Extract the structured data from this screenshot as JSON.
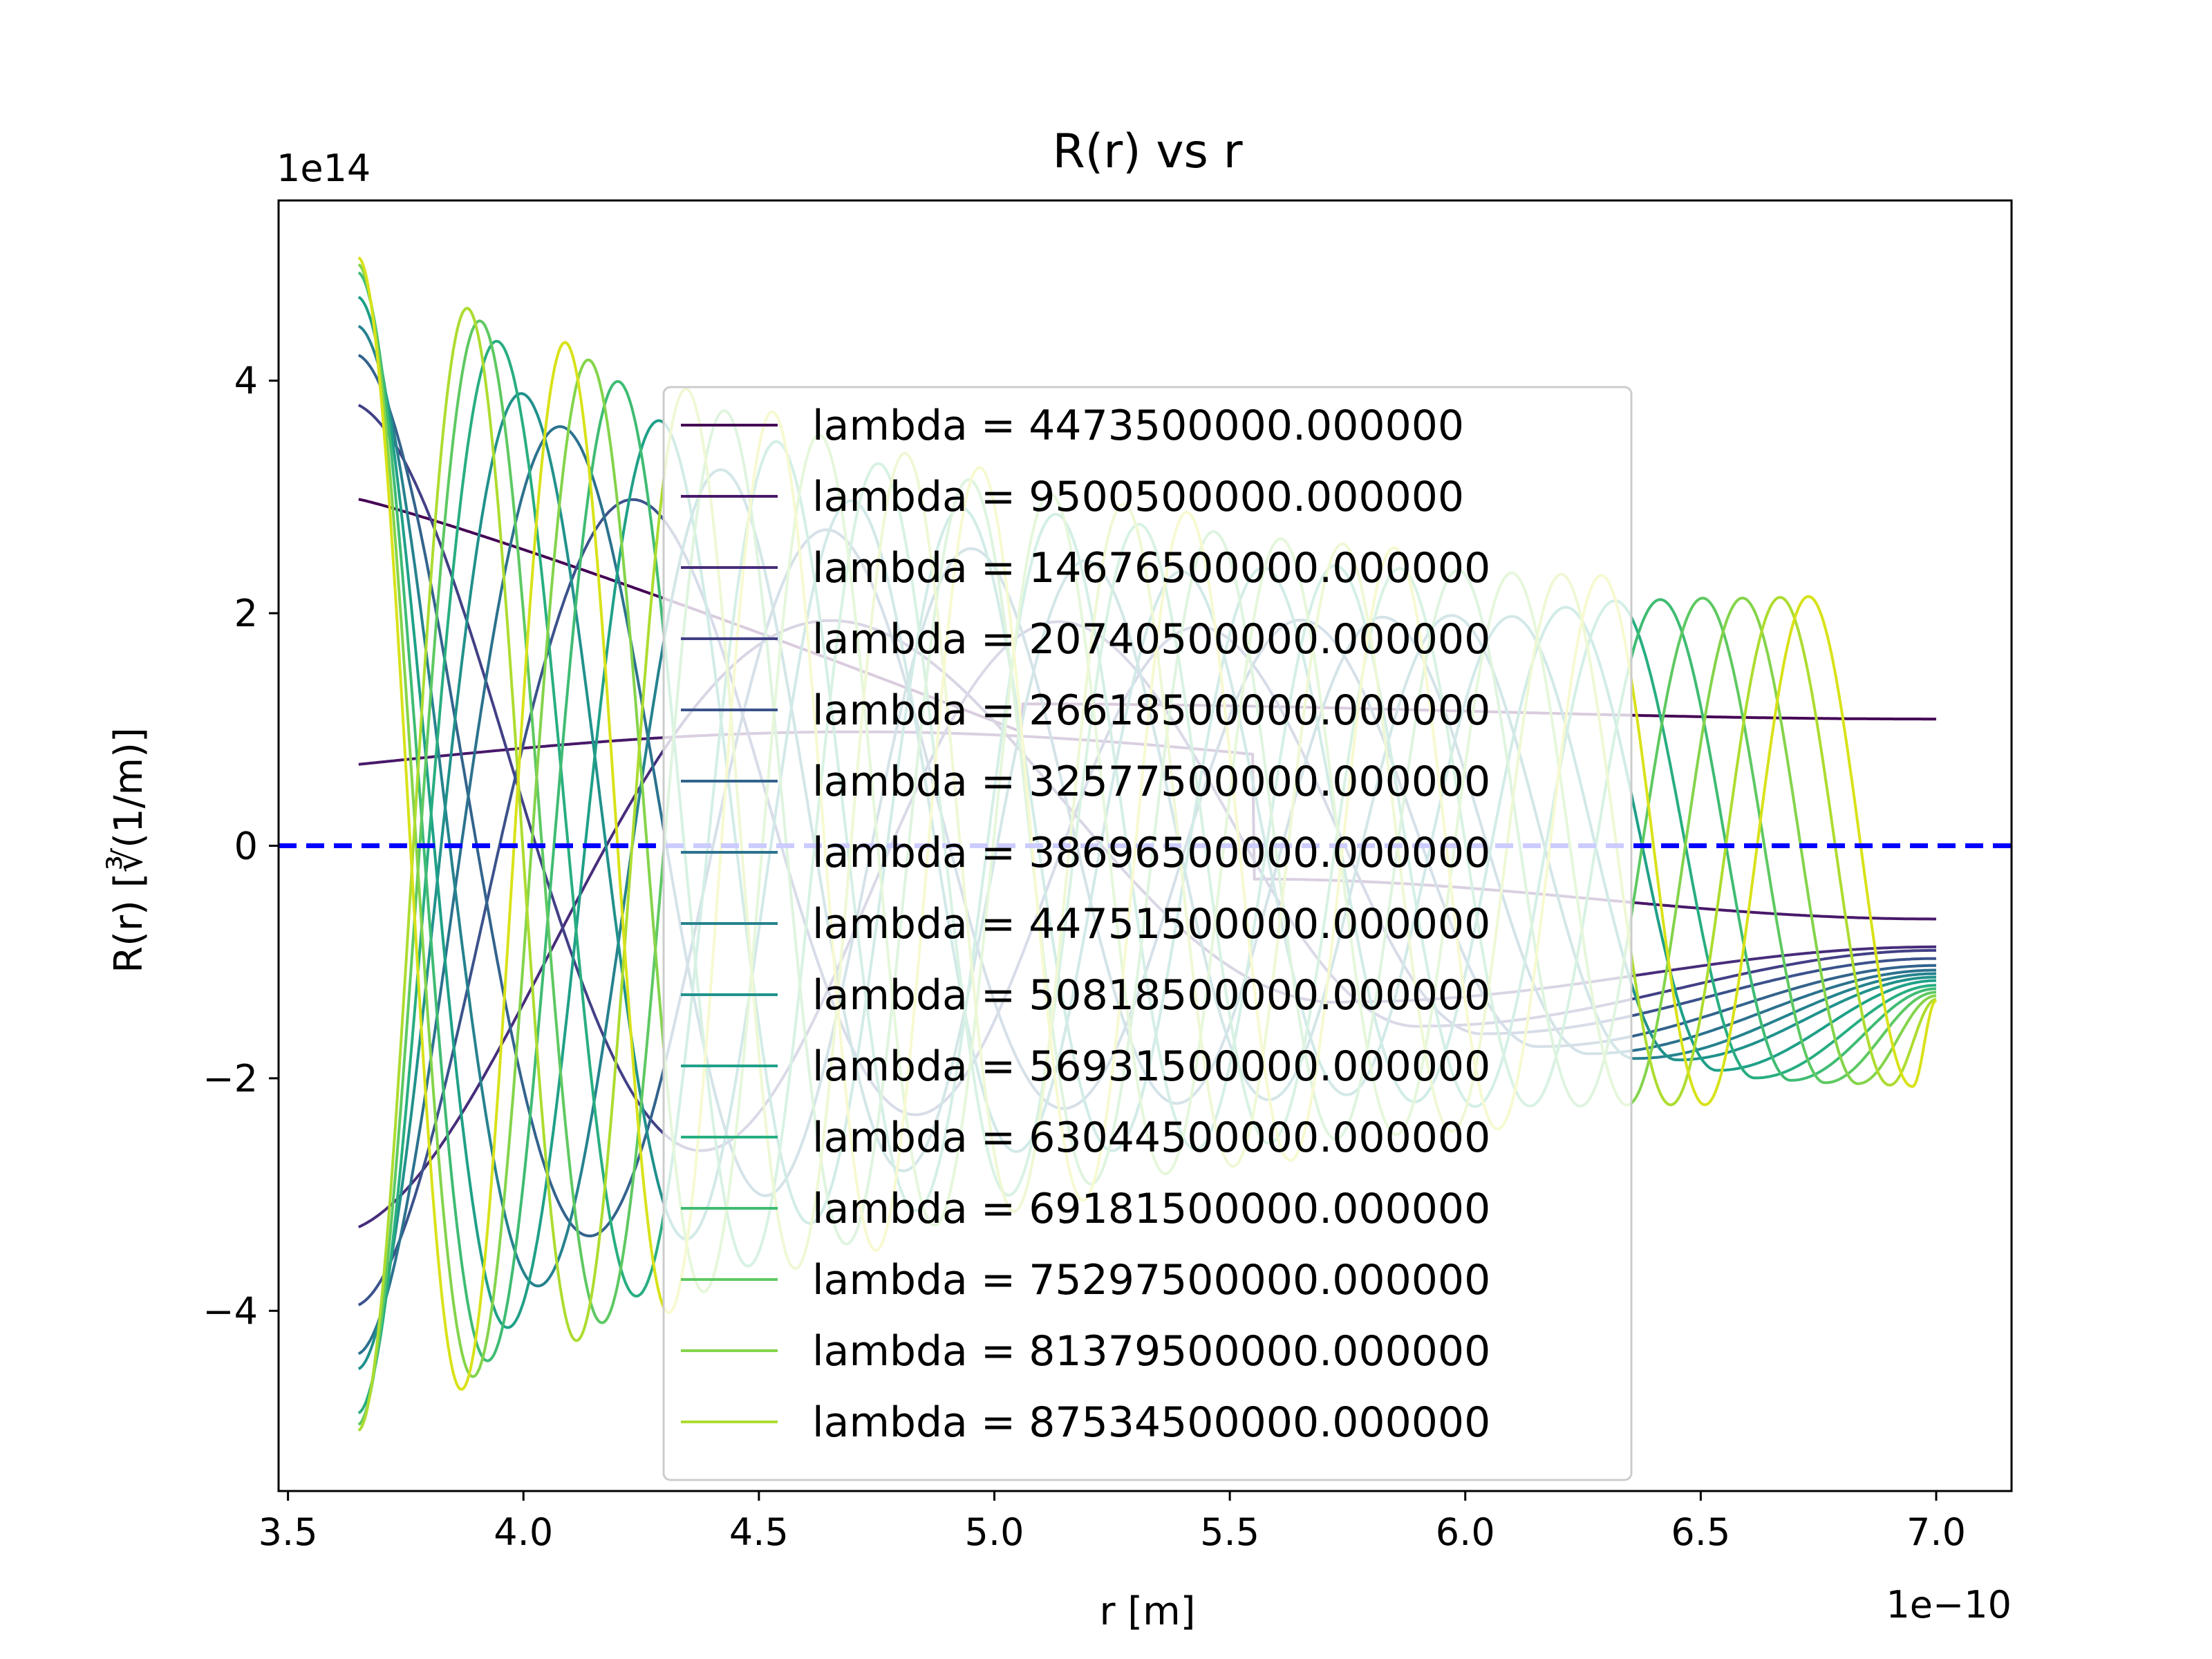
{
  "chart_data": {
    "type": "line",
    "title": "R(r) vs r",
    "xlabel": "r [m]",
    "ylabel": "R(r) [∛(1/m)]",
    "x_offset_label": "1e−10",
    "y_offset_label": "1e14",
    "x_scale": 1e-10,
    "y_scale": 100000000000000.0,
    "xlim": [
      3.48,
      7.16
    ],
    "ylim": [
      -5.55,
      5.55
    ],
    "x_ticks": [
      3.5,
      4.0,
      4.5,
      5.0,
      5.5,
      6.0,
      6.5,
      7.0
    ],
    "x_tick_labels": [
      "3.5",
      "4.0",
      "4.5",
      "5.0",
      "5.5",
      "6.0",
      "6.5",
      "7.0"
    ],
    "y_ticks": [
      -4,
      -2,
      0,
      2,
      4
    ],
    "y_tick_labels": [
      "−4",
      "−2",
      "0",
      "2",
      "4"
    ],
    "x_range_data": [
      3.65,
      7.0
    ],
    "reference_line": {
      "y": 0,
      "color": "#0000ff",
      "style": "dashed"
    },
    "legend_position": "center",
    "colormap": "viridis",
    "series": [
      {
        "name": "lambda = 4473500000.000000",
        "color": "#440154",
        "modes": 1,
        "start": 2.98,
        "end": 1.09
      },
      {
        "name": "lambda = 9500500000.000000",
        "color": "#48186a",
        "modes": 2,
        "start": 0.7,
        "end": -0.63
      },
      {
        "name": "lambda = 14676500000.000000",
        "color": "#472d7b",
        "modes": 3,
        "start": -3.28,
        "end": -0.87
      },
      {
        "name": "lambda = 20740500000.000000",
        "color": "#424086",
        "modes": 4,
        "start": 3.79,
        "end": -0.9
      },
      {
        "name": "lambda = 26618500000.000000",
        "color": "#3b528b",
        "modes": 5,
        "start": -3.95,
        "end": -0.97
      },
      {
        "name": "lambda = 32577500000.000000",
        "color": "#33638d",
        "modes": 6,
        "start": 4.22,
        "end": -1.03
      },
      {
        "name": "lambda = 38696500000.000000",
        "color": "#2c728e",
        "modes": 7,
        "start": -4.37,
        "end": -1.07
      },
      {
        "name": "lambda = 44751500000.000000",
        "color": "#26828e",
        "modes": 8,
        "start": 4.47,
        "end": -1.1
      },
      {
        "name": "lambda = 50818500000.000000",
        "color": "#21918c",
        "modes": 9,
        "start": -4.5,
        "end": -1.13
      },
      {
        "name": "lambda = 56931500000.000000",
        "color": "#1fa088",
        "modes": 10,
        "start": 4.72,
        "end": -1.16
      },
      {
        "name": "lambda = 63044500000.000000",
        "color": "#28ae80",
        "modes": 11,
        "start": -4.88,
        "end": -1.2
      },
      {
        "name": "lambda = 69181500000.000000",
        "color": "#3fbc73",
        "modes": 12,
        "start": 4.93,
        "end": -1.23
      },
      {
        "name": "lambda = 75297500000.000000",
        "color": "#5ec962",
        "modes": 13,
        "start": -4.98,
        "end": -1.26
      },
      {
        "name": "lambda = 81379500000.000000",
        "color": "#84d44b",
        "modes": 14,
        "start": 5.0,
        "end": -1.29
      },
      {
        "name": "lambda = 87534500000.000000",
        "color": "#addc30",
        "modes": 15,
        "start": -5.03,
        "end": -1.32
      },
      {
        "name": "",
        "color": "#d8e219",
        "modes": 16,
        "start": 5.06,
        "end": -1.33
      }
    ]
  }
}
